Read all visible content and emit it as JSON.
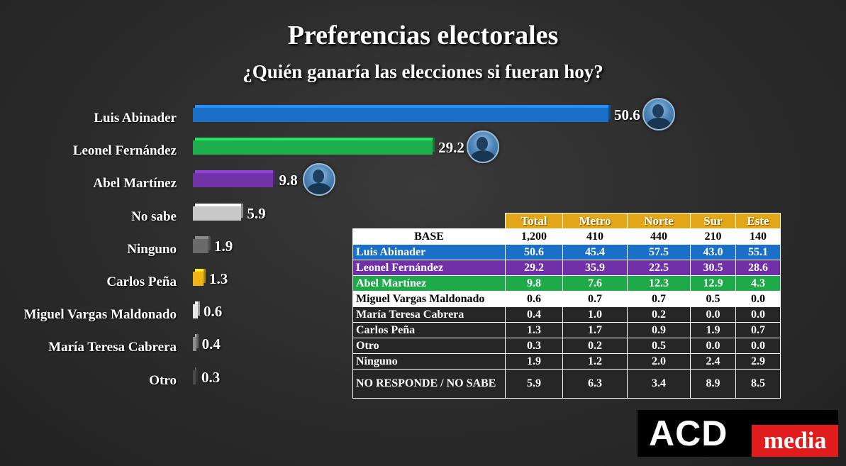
{
  "title": "Preferencias electorales",
  "subtitle": "¿Quién ganaría las elecciones si fueran hoy?",
  "chart_data": {
    "type": "bar",
    "orientation": "horizontal",
    "categories": [
      "Luis Abinader",
      "Leonel Fernández",
      "Abel Martínez",
      "No sabe",
      "Ninguno",
      "Carlos Peña",
      "Miguel Vargas Maldonado",
      "María Teresa Cabrera",
      "Otro"
    ],
    "values": [
      50.6,
      29.2,
      9.8,
      5.9,
      1.9,
      1.3,
      0.6,
      0.4,
      0.3
    ],
    "value_labels": [
      "50.6",
      "29.2",
      "9.8",
      "5.9",
      "1.9",
      "1.3",
      "0.6",
      "0.4",
      "0.3"
    ],
    "colors": [
      "#1a6fc6",
      "#1fae4c",
      "#7232a8",
      "#c8c8c8",
      "#6a6a6a",
      "#f0b414",
      "#e8e8e8",
      "#8c8c8c",
      "#4a4a4a"
    ],
    "avatars": [
      "person-photo-icon",
      "person-photo-icon",
      "person-photo-icon",
      null,
      null,
      null,
      null,
      null,
      null
    ],
    "xlim": [
      0,
      52
    ]
  },
  "table": {
    "headers": [
      "Total",
      "Metro",
      "Norte",
      "Sur",
      "Este"
    ],
    "rows": [
      {
        "label": "BASE",
        "values": [
          "1,200",
          "410",
          "440",
          "210",
          "140"
        ],
        "style": "base"
      },
      {
        "label": "Luis Abinader",
        "values": [
          "50.6",
          "45.4",
          "57.5",
          "43.0",
          "55.1"
        ],
        "style": "luis"
      },
      {
        "label": "Leonel Fernández",
        "values": [
          "29.2",
          "35.9",
          "22.5",
          "30.5",
          "28.6"
        ],
        "style": "leonel"
      },
      {
        "label": "Abel Martínez",
        "values": [
          "9.8",
          "7.6",
          "12.3",
          "12.9",
          "4.3"
        ],
        "style": "abel"
      },
      {
        "label": "Miguel Vargas Maldonado",
        "values": [
          "0.6",
          "0.7",
          "0.7",
          "0.5",
          "0.0"
        ],
        "style": "white"
      },
      {
        "label": "María Teresa Cabrera",
        "values": [
          "0.4",
          "1.0",
          "0.2",
          "0.0",
          "0.0"
        ],
        "style": "dark"
      },
      {
        "label": "Carlos Peña",
        "values": [
          "1.3",
          "1.7",
          "0.9",
          "1.9",
          "0.7"
        ],
        "style": "dark"
      },
      {
        "label": "Otro",
        "values": [
          "0.3",
          "0.2",
          "0.5",
          "0.0",
          "0.0"
        ],
        "style": "dark"
      },
      {
        "label": "Ninguno",
        "values": [
          "1.9",
          "1.2",
          "2.0",
          "2.4",
          "2.9"
        ],
        "style": "dark"
      },
      {
        "label": "NO RESPONDE / NO SABE",
        "values": [
          "5.9",
          "6.3",
          "3.4",
          "8.9",
          "8.5"
        ],
        "style": "dark-tall"
      }
    ]
  },
  "logo": {
    "brand": "ACD",
    "tag": "media"
  }
}
